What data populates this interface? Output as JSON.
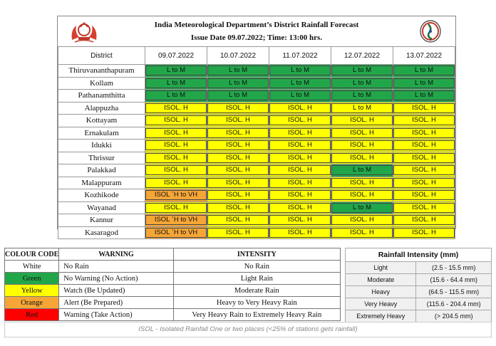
{
  "header": {
    "title": "India Meteorological Department’s District Rainfall Forecast",
    "issue": "Issue Date 09.07.2022; Time: 13:00 hrs."
  },
  "forecast": {
    "district_header": "District",
    "dates": [
      "09.07.2022",
      "10.07.2022",
      "11.07.2022",
      "12.07.2022",
      "13.07.2022"
    ],
    "rows": [
      {
        "district": "Thiruvananthapuram",
        "cells": [
          {
            "t": "L to M",
            "c": "green"
          },
          {
            "t": "L to M",
            "c": "green"
          },
          {
            "t": "L to M",
            "c": "green"
          },
          {
            "t": "L to M",
            "c": "green"
          },
          {
            "t": "L to M",
            "c": "green"
          }
        ]
      },
      {
        "district": "Kollam",
        "cells": [
          {
            "t": "L to M",
            "c": "green"
          },
          {
            "t": "L to M",
            "c": "green"
          },
          {
            "t": "L to M",
            "c": "green"
          },
          {
            "t": "L to M",
            "c": "green"
          },
          {
            "t": "L to M",
            "c": "green"
          }
        ]
      },
      {
        "district": "Pathanamthitta",
        "cells": [
          {
            "t": "L to M",
            "c": "green"
          },
          {
            "t": "L to M",
            "c": "green"
          },
          {
            "t": "L to M",
            "c": "green"
          },
          {
            "t": "L to M",
            "c": "green"
          },
          {
            "t": "L to M",
            "c": "green"
          }
        ]
      },
      {
        "district": "Alappuzha",
        "cells": [
          {
            "t": "ISOL. H",
            "c": "yellow"
          },
          {
            "t": "ISOL. H",
            "c": "yellow"
          },
          {
            "t": "ISOL. H",
            "c": "yellow"
          },
          {
            "t": "L to M",
            "c": "yellow"
          },
          {
            "t": "ISOL. H",
            "c": "yellow"
          }
        ]
      },
      {
        "district": "Kottayam",
        "cells": [
          {
            "t": "ISOL. H",
            "c": "yellow"
          },
          {
            "t": "ISOL. H",
            "c": "yellow"
          },
          {
            "t": "ISOL. H",
            "c": "yellow"
          },
          {
            "t": "ISOL. H",
            "c": "yellow"
          },
          {
            "t": "ISOL. H",
            "c": "yellow"
          }
        ]
      },
      {
        "district": "Ernakulam",
        "cells": [
          {
            "t": "ISOL. H",
            "c": "yellow"
          },
          {
            "t": "ISOL. H",
            "c": "yellow"
          },
          {
            "t": "ISOL. H",
            "c": "yellow"
          },
          {
            "t": "ISOL. H",
            "c": "yellow"
          },
          {
            "t": "ISOL. H",
            "c": "yellow"
          }
        ]
      },
      {
        "district": "Idukki",
        "cells": [
          {
            "t": "ISOL. H",
            "c": "yellow"
          },
          {
            "t": "ISOL. H",
            "c": "yellow"
          },
          {
            "t": "ISOL. H",
            "c": "yellow"
          },
          {
            "t": "ISOL. H",
            "c": "yellow"
          },
          {
            "t": "ISOL. H",
            "c": "yellow"
          }
        ]
      },
      {
        "district": "Thrissur",
        "cells": [
          {
            "t": "ISOL. H",
            "c": "yellow"
          },
          {
            "t": "ISOL. H",
            "c": "yellow"
          },
          {
            "t": "ISOL. H",
            "c": "yellow"
          },
          {
            "t": "ISOL. H",
            "c": "yellow"
          },
          {
            "t": "ISOL. H",
            "c": "yellow"
          }
        ]
      },
      {
        "district": "Palakkad",
        "cells": [
          {
            "t": "ISOL. H",
            "c": "yellow"
          },
          {
            "t": "ISOL. H",
            "c": "yellow"
          },
          {
            "t": "ISOL. H",
            "c": "yellow"
          },
          {
            "t": "L to M",
            "c": "green"
          },
          {
            "t": "ISOL. H",
            "c": "yellow"
          }
        ]
      },
      {
        "district": "Malappuram",
        "cells": [
          {
            "t": "ISOL. H",
            "c": "yellow"
          },
          {
            "t": "ISOL. H",
            "c": "yellow"
          },
          {
            "t": "ISOL. H",
            "c": "yellow"
          },
          {
            "t": "ISOL. H",
            "c": "yellow"
          },
          {
            "t": "ISOL. H",
            "c": "yellow"
          }
        ]
      },
      {
        "district": "Kozhikode",
        "cells": [
          {
            "t": "ISOL `H to VH",
            "c": "orange"
          },
          {
            "t": "ISOL. H",
            "c": "yellow"
          },
          {
            "t": "ISOL. H",
            "c": "yellow"
          },
          {
            "t": "ISOL. H",
            "c": "yellow"
          },
          {
            "t": "ISOL. H",
            "c": "yellow"
          }
        ]
      },
      {
        "district": "Wayanad",
        "cells": [
          {
            "t": "ISOL. H",
            "c": "yellow"
          },
          {
            "t": "ISOL. H",
            "c": "yellow"
          },
          {
            "t": "ISOL. H",
            "c": "yellow"
          },
          {
            "t": "L to M",
            "c": "green"
          },
          {
            "t": "ISOL. H",
            "c": "yellow"
          }
        ]
      },
      {
        "district": "Kannur",
        "cells": [
          {
            "t": "ISOL `H to VH",
            "c": "orange"
          },
          {
            "t": "ISOL. H",
            "c": "yellow"
          },
          {
            "t": "ISOL. H",
            "c": "yellow"
          },
          {
            "t": "ISOL. H",
            "c": "yellow"
          },
          {
            "t": "ISOL. H",
            "c": "yellow"
          }
        ]
      },
      {
        "district": "Kasaragod",
        "cells": [
          {
            "t": "ISOL `H to VH",
            "c": "orange"
          },
          {
            "t": "ISOL. H",
            "c": "yellow"
          },
          {
            "t": "ISOL. H",
            "c": "yellow"
          },
          {
            "t": "ISOL. H",
            "c": "yellow"
          },
          {
            "t": "ISOL. H",
            "c": "yellow"
          }
        ]
      }
    ]
  },
  "legend": {
    "headers": [
      "COLOUR CODE",
      "WARNING",
      "INTENSITY"
    ],
    "rows": [
      {
        "code": "White",
        "color": "#ffffff",
        "warning": "No Rain",
        "intensity": "No Rain"
      },
      {
        "code": "Green",
        "color": "#22a64a",
        "warning": "No Warning (No Action)",
        "intensity": "Light Rain"
      },
      {
        "code": "Yellow",
        "color": "#ffff00",
        "warning": "Watch (Be Updated)",
        "intensity": "Moderate Rain"
      },
      {
        "code": "Orange",
        "color": "#f6a636",
        "warning": "Alert (Be Prepared)",
        "intensity": "Heavy to Very Heavy Rain"
      },
      {
        "code": "Red",
        "color": "#ff0000",
        "warning": "Warning (Take Action)",
        "intensity": "Very Heavy Rain to Extremely Heavy Rain"
      }
    ]
  },
  "rainfall_intensity": {
    "title": "Rainfall Intensity (mm)",
    "rows": [
      {
        "label": "Light",
        "range": "(2.5 - 15.5 mm)"
      },
      {
        "label": "Moderate",
        "range": "(15.6 - 64.4 mm)"
      },
      {
        "label": "Heavy",
        "range": "(64.5 - 115.5 mm)"
      },
      {
        "label": "Very Heavy",
        "range": "(115.6 - 204.4 mm)"
      },
      {
        "label": "Extremely Heavy",
        "range": "(> 204.5 mm)"
      }
    ]
  },
  "footnote": "ISOL - Isolated Rainfall One or two places (<25% of stations gets rainfall)",
  "colors": {
    "green": "#22a64a",
    "yellow": "#ffff00",
    "orange": "#f6a636",
    "red": "#ff0000"
  }
}
